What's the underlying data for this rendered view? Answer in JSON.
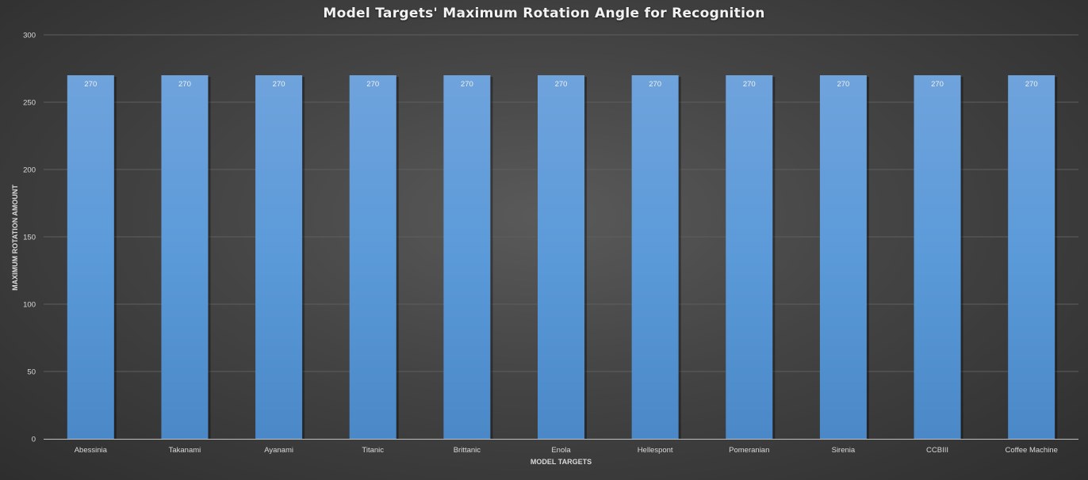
{
  "chart_data": {
    "type": "bar",
    "title": "Model Targets' Maximum Rotation Angle for Recognition",
    "xlabel": "MODEL TARGETS",
    "ylabel": "MAXIMUM ROTATION AMOUNT",
    "categories": [
      "Abessinia",
      "Takanami",
      "Ayanami",
      "Titanic",
      "Brittanic",
      "Enola",
      "Hellespont",
      "Pomeranian",
      "Sirenia",
      "CCBIII",
      "Coffee Machine"
    ],
    "values": [
      270,
      270,
      270,
      270,
      270,
      270,
      270,
      270,
      270,
      270,
      270
    ],
    "ylim": [
      0,
      300
    ],
    "yticks": [
      0,
      50,
      100,
      150,
      200,
      250,
      300
    ],
    "grid": true,
    "data_labels": true,
    "legend": "none",
    "colors": {
      "bar_top": "#6fa3dc",
      "bar_mid": "#5b9ad9",
      "bar_bottom": "#4a88c7",
      "gridline": "#5e5e5e",
      "axis": "#bfbfbf",
      "background": "#444444"
    }
  }
}
